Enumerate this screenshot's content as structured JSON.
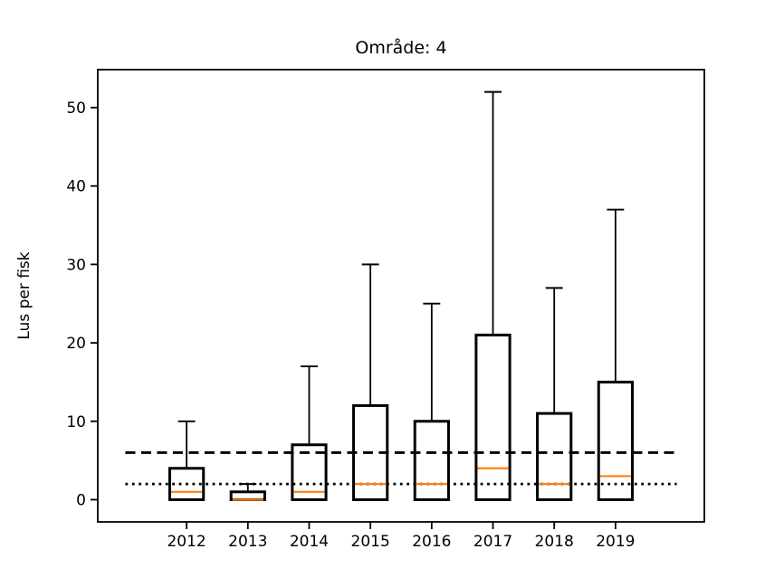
{
  "chart_data": {
    "type": "boxplot",
    "title": "Område: 4",
    "xlabel": "",
    "ylabel": "Lus per fisk",
    "categories": [
      "2012",
      "2013",
      "2014",
      "2015",
      "2016",
      "2017",
      "2018",
      "2019"
    ],
    "boxes": [
      {
        "label": "2012",
        "whisker_low": 0,
        "q1": 0,
        "median": 1,
        "q3": 4,
        "whisker_high": 10
      },
      {
        "label": "2013",
        "whisker_low": 0,
        "q1": 0,
        "median": 0,
        "q3": 1,
        "whisker_high": 2
      },
      {
        "label": "2014",
        "whisker_low": 0,
        "q1": 0,
        "median": 1,
        "q3": 7,
        "whisker_high": 17
      },
      {
        "label": "2015",
        "whisker_low": 0,
        "q1": 0,
        "median": 2,
        "q3": 12,
        "whisker_high": 30
      },
      {
        "label": "2016",
        "whisker_low": 0,
        "q1": 0,
        "median": 2,
        "q3": 10,
        "whisker_high": 25
      },
      {
        "label": "2017",
        "whisker_low": 0,
        "q1": 0,
        "median": 4,
        "q3": 21,
        "whisker_high": 52
      },
      {
        "label": "2018",
        "whisker_low": 0,
        "q1": 0,
        "median": 2,
        "q3": 11,
        "whisker_high": 27
      },
      {
        "label": "2019",
        "whisker_low": 0,
        "q1": 0,
        "median": 3,
        "q3": 15,
        "whisker_high": 37
      }
    ],
    "reference_lines": [
      {
        "name": "dashed-reference-line",
        "y": 6,
        "style": "dashed",
        "x_range": [
          0,
          9
        ]
      },
      {
        "name": "dotted-reference-line",
        "y": 2,
        "style": "dotted",
        "x_range": [
          0,
          9
        ]
      }
    ],
    "yticks": [
      0,
      10,
      20,
      30,
      40,
      50
    ],
    "ylim": [
      -2.83,
      54.84
    ],
    "xlim": [
      -0.45,
      9.45
    ],
    "grid": false,
    "legend": null,
    "colors": {
      "box": "#000000",
      "median": "#ff7f0e",
      "axes": "#000000",
      "background": "#ffffff"
    }
  }
}
